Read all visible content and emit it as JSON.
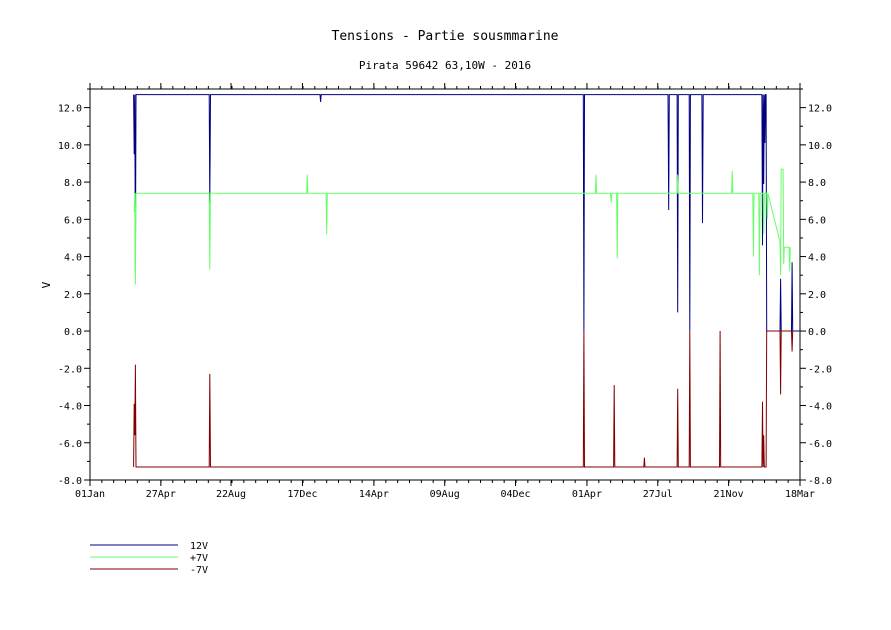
{
  "chart_data": {
    "type": "line",
    "title": "Tensions - Partie sousmmarine",
    "subtitle": "Pirata 59642 63,10W - 2016",
    "ylabel": "V",
    "xlabel": "",
    "ylim": [
      -8.0,
      13.0
    ],
    "yticks": [
      -8.0,
      -6.0,
      -4.0,
      -2.0,
      0.0,
      2.0,
      4.0,
      6.0,
      8.0,
      10.0,
      12.0
    ],
    "ytick_labels": [
      "-8.0",
      "-6.0",
      "-4.0",
      "-2.0",
      "0.0",
      "2.0",
      "4.0",
      "6.0",
      "8.0",
      "10.0",
      "12.0"
    ],
    "xlim": [
      0,
      1173
    ],
    "xticks": [
      0,
      117,
      233,
      351,
      469,
      586,
      703,
      821,
      938,
      1055,
      1173
    ],
    "xtick_labels": [
      "01Jan",
      "27Apr",
      "22Aug",
      "17Dec",
      "14Apr",
      "09Aug",
      "04Dec",
      "01Apr",
      "27Jul",
      "21Nov",
      "18Mar"
    ],
    "grid": false,
    "legend_position": "bottom-left",
    "series": [
      {
        "name": "12V",
        "color": "#000080",
        "x": [
          72,
          73,
          74,
          75,
          76,
          77,
          78,
          79,
          197,
          198,
          199,
          380,
          381,
          382,
          815,
          816,
          817,
          818,
          819,
          955,
          956,
          957,
          970,
          971,
          972,
          990,
          991,
          992,
          1011,
          1012,
          1013,
          1110,
          1111,
          1112,
          1113,
          1114,
          1115,
          1116,
          1117,
          1118,
          1119,
          1120,
          1121,
          1140,
          1141,
          1142,
          1159,
          1160,
          1161,
          1172
        ],
        "y": [
          12.7,
          9.5,
          12.7,
          3.2,
          12.7,
          12.7,
          12.7,
          12.7,
          12.7,
          6.9,
          12.7,
          12.7,
          12.3,
          12.7,
          12.7,
          0.0,
          12.7,
          12.7,
          12.7,
          12.7,
          6.5,
          12.7,
          12.7,
          1.0,
          12.7,
          12.7,
          0.0,
          12.7,
          12.7,
          5.8,
          12.7,
          12.7,
          4.6,
          12.7,
          7.9,
          12.7,
          10.1,
          12.7,
          12.7,
          0.0,
          0.0,
          0.0,
          0.0,
          0.0,
          2.8,
          0.0,
          0.0,
          3.7,
          0.0,
          0.0
        ]
      },
      {
        "name": "+7V",
        "color": "#66ff66",
        "x": [
          73,
          74,
          75,
          76,
          77,
          78,
          79,
          197,
          198,
          199,
          358,
          359,
          360,
          390,
          391,
          392,
          835,
          836,
          837,
          860,
          861,
          862,
          870,
          871,
          872,
          970,
          971,
          972,
          1060,
          1061,
          1062,
          1095,
          1096,
          1097,
          1105,
          1106,
          1107,
          1112,
          1113,
          1114,
          1118,
          1119,
          1120,
          1140,
          1141,
          1142,
          1145,
          1146,
          1147,
          1155,
          1156,
          1157
        ],
        "y": [
          6.4,
          7.4,
          2.5,
          7.4,
          7.4,
          7.4,
          7.4,
          7.4,
          3.3,
          7.4,
          7.4,
          8.4,
          7.4,
          7.4,
          5.2,
          7.4,
          7.4,
          8.4,
          7.4,
          7.4,
          6.9,
          7.4,
          7.4,
          3.9,
          7.4,
          7.4,
          8.4,
          7.4,
          7.4,
          8.6,
          7.4,
          7.4,
          4.0,
          7.4,
          7.4,
          3.0,
          7.4,
          7.4,
          5.2,
          7.4,
          7.4,
          6.0,
          7.4,
          4.8,
          3.0,
          8.7,
          8.7,
          3.6,
          4.5,
          4.5,
          3.2,
          4.5
        ]
      },
      {
        "name": "-7V",
        "color": "#800000",
        "x": [
          72,
          73,
          74,
          75,
          76,
          77,
          78,
          79,
          197,
          198,
          199,
          815,
          816,
          817,
          865,
          866,
          867,
          915,
          916,
          917,
          970,
          971,
          972,
          990,
          991,
          992,
          1040,
          1041,
          1042,
          1110,
          1111,
          1112,
          1113,
          1114,
          1115,
          1116,
          1117,
          1118,
          1119,
          1120,
          1121,
          1140,
          1141,
          1142,
          1159,
          1160,
          1161
        ],
        "y": [
          -7.3,
          -3.9,
          -5.6,
          -1.8,
          -7.3,
          -7.3,
          -7.3,
          -7.3,
          -7.3,
          -2.3,
          -7.3,
          -7.3,
          0.0,
          -7.3,
          -7.3,
          -2.9,
          -7.3,
          -7.3,
          -6.8,
          -7.3,
          -7.3,
          -3.1,
          -7.3,
          -7.3,
          0.0,
          -7.3,
          -7.3,
          0.0,
          -7.3,
          -7.3,
          -3.8,
          -7.3,
          -5.6,
          -7.3,
          -7.3,
          -7.3,
          -7.3,
          0.0,
          0.0,
          0.0,
          0.0,
          0.0,
          -3.4,
          0.0,
          0.0,
          -1.1,
          0.0
        ]
      }
    ]
  }
}
